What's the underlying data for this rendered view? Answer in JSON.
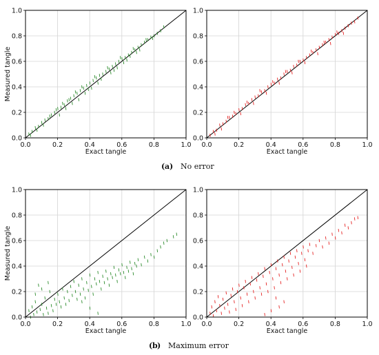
{
  "captions": {
    "a_label": "a",
    "a_text": "No error",
    "b_label": "b",
    "b_text": "Maximum error"
  },
  "colors": {
    "green": "#2a8a2a",
    "red": "#e52222",
    "diagonal": "#000000",
    "grid": "#d4d4d4"
  },
  "chart_data": [
    {
      "type": "scatter",
      "panel": "a-left",
      "xlabel": "Exact tangle",
      "ylabel": "Measured tangle",
      "xlim": [
        0,
        1
      ],
      "ylim": [
        0,
        1
      ],
      "xticks": [
        "0.0",
        "0.2",
        "0.4",
        "0.6",
        "0.8",
        "1.0"
      ],
      "yticks": [
        "0.0",
        "0.2",
        "0.4",
        "0.6",
        "0.8",
        "1.0"
      ],
      "grid": true,
      "color": "#2a8a2a",
      "reference_line": "y = x",
      "points": [
        [
          0.02,
          0.03
        ],
        [
          0.04,
          0.05
        ],
        [
          0.06,
          0.08
        ],
        [
          0.08,
          0.09
        ],
        [
          0.1,
          0.12
        ],
        [
          0.12,
          0.14
        ],
        [
          0.14,
          0.15
        ],
        [
          0.16,
          0.18
        ],
        [
          0.18,
          0.2
        ],
        [
          0.2,
          0.23
        ],
        [
          0.22,
          0.24
        ],
        [
          0.24,
          0.26
        ],
        [
          0.26,
          0.29
        ],
        [
          0.28,
          0.31
        ],
        [
          0.3,
          0.33
        ],
        [
          0.32,
          0.35
        ],
        [
          0.34,
          0.37
        ],
        [
          0.36,
          0.39
        ],
        [
          0.38,
          0.41
        ],
        [
          0.4,
          0.43
        ],
        [
          0.42,
          0.45
        ],
        [
          0.44,
          0.47
        ],
        [
          0.46,
          0.49
        ],
        [
          0.48,
          0.5
        ],
        [
          0.5,
          0.52
        ],
        [
          0.52,
          0.54
        ],
        [
          0.54,
          0.56
        ],
        [
          0.56,
          0.58
        ],
        [
          0.58,
          0.6
        ],
        [
          0.6,
          0.62
        ],
        [
          0.62,
          0.63
        ],
        [
          0.64,
          0.65
        ],
        [
          0.66,
          0.67
        ],
        [
          0.68,
          0.69
        ],
        [
          0.7,
          0.71
        ],
        [
          0.72,
          0.73
        ],
        [
          0.74,
          0.75
        ],
        [
          0.76,
          0.77
        ],
        [
          0.78,
          0.79
        ],
        [
          0.8,
          0.8
        ],
        [
          0.82,
          0.82
        ],
        [
          0.84,
          0.84
        ],
        [
          0.86,
          0.87
        ],
        [
          0.03,
          0.02
        ],
        [
          0.07,
          0.06
        ],
        [
          0.11,
          0.1
        ],
        [
          0.15,
          0.17
        ],
        [
          0.19,
          0.22
        ],
        [
          0.23,
          0.27
        ],
        [
          0.27,
          0.3
        ],
        [
          0.31,
          0.36
        ],
        [
          0.35,
          0.4
        ],
        [
          0.39,
          0.38
        ],
        [
          0.43,
          0.48
        ],
        [
          0.47,
          0.46
        ],
        [
          0.51,
          0.55
        ],
        [
          0.55,
          0.53
        ],
        [
          0.59,
          0.63
        ],
        [
          0.63,
          0.61
        ],
        [
          0.67,
          0.7
        ],
        [
          0.71,
          0.69
        ],
        [
          0.75,
          0.77
        ],
        [
          0.79,
          0.78
        ],
        [
          0.33,
          0.3
        ],
        [
          0.37,
          0.35
        ],
        [
          0.41,
          0.39
        ],
        [
          0.45,
          0.43
        ],
        [
          0.25,
          0.23
        ],
        [
          0.29,
          0.27
        ],
        [
          0.21,
          0.18
        ],
        [
          0.53,
          0.51
        ],
        [
          0.57,
          0.55
        ],
        [
          0.61,
          0.59
        ],
        [
          0.65,
          0.64
        ],
        [
          0.69,
          0.67
        ]
      ]
    },
    {
      "type": "scatter",
      "panel": "a-right",
      "xlabel": "Exact tangle",
      "ylabel": "",
      "xlim": [
        0,
        1
      ],
      "ylim": [
        0,
        1
      ],
      "xticks": [
        "0.0",
        "0.2",
        "0.4",
        "0.6",
        "0.8",
        "1.0"
      ],
      "yticks": [
        "0.0",
        "0.2",
        "0.4",
        "0.6",
        "0.8",
        "1.0"
      ],
      "grid": true,
      "color": "#e52222",
      "reference_line": "y = x",
      "points": [
        [
          0.02,
          0.02
        ],
        [
          0.04,
          0.05
        ],
        [
          0.06,
          0.06
        ],
        [
          0.08,
          0.1
        ],
        [
          0.1,
          0.11
        ],
        [
          0.12,
          0.13
        ],
        [
          0.14,
          0.16
        ],
        [
          0.16,
          0.17
        ],
        [
          0.18,
          0.19
        ],
        [
          0.2,
          0.22
        ],
        [
          0.22,
          0.23
        ],
        [
          0.24,
          0.26
        ],
        [
          0.26,
          0.27
        ],
        [
          0.28,
          0.3
        ],
        [
          0.3,
          0.32
        ],
        [
          0.32,
          0.33
        ],
        [
          0.34,
          0.36
        ],
        [
          0.36,
          0.37
        ],
        [
          0.38,
          0.4
        ],
        [
          0.4,
          0.42
        ],
        [
          0.42,
          0.43
        ],
        [
          0.44,
          0.46
        ],
        [
          0.46,
          0.47
        ],
        [
          0.48,
          0.5
        ],
        [
          0.5,
          0.52
        ],
        [
          0.52,
          0.53
        ],
        [
          0.54,
          0.56
        ],
        [
          0.56,
          0.57
        ],
        [
          0.58,
          0.6
        ],
        [
          0.6,
          0.61
        ],
        [
          0.62,
          0.63
        ],
        [
          0.64,
          0.65
        ],
        [
          0.66,
          0.67
        ],
        [
          0.68,
          0.69
        ],
        [
          0.7,
          0.71
        ],
        [
          0.72,
          0.73
        ],
        [
          0.74,
          0.75
        ],
        [
          0.76,
          0.77
        ],
        [
          0.78,
          0.79
        ],
        [
          0.8,
          0.81
        ],
        [
          0.82,
          0.82
        ],
        [
          0.84,
          0.84
        ],
        [
          0.86,
          0.86
        ],
        [
          0.88,
          0.88
        ],
        [
          0.9,
          0.9
        ],
        [
          0.92,
          0.91
        ],
        [
          0.94,
          0.94
        ],
        [
          0.05,
          0.03
        ],
        [
          0.09,
          0.07
        ],
        [
          0.13,
          0.16
        ],
        [
          0.17,
          0.2
        ],
        [
          0.21,
          0.19
        ],
        [
          0.25,
          0.28
        ],
        [
          0.29,
          0.27
        ],
        [
          0.33,
          0.37
        ],
        [
          0.37,
          0.35
        ],
        [
          0.41,
          0.44
        ],
        [
          0.45,
          0.43
        ],
        [
          0.49,
          0.52
        ],
        [
          0.53,
          0.51
        ],
        [
          0.57,
          0.6
        ],
        [
          0.61,
          0.59
        ],
        [
          0.65,
          0.68
        ],
        [
          0.69,
          0.66
        ],
        [
          0.73,
          0.75
        ],
        [
          0.77,
          0.74
        ],
        [
          0.81,
          0.83
        ],
        [
          0.85,
          0.82
        ]
      ]
    },
    {
      "type": "scatter",
      "panel": "b-left",
      "xlabel": "Exact tangle",
      "ylabel": "Measured tangle",
      "xlim": [
        0,
        1
      ],
      "ylim": [
        0,
        1
      ],
      "xticks": [
        "0.0",
        "0.2",
        "0.4",
        "0.6",
        "0.8",
        "1.0"
      ],
      "yticks": [
        "0.0",
        "0.2",
        "0.4",
        "0.6",
        "0.8",
        "1.0"
      ],
      "grid": true,
      "color": "#2a8a2a",
      "reference_line": "y = x",
      "points": [
        [
          0.02,
          0.05
        ],
        [
          0.03,
          0.0
        ],
        [
          0.04,
          0.08
        ],
        [
          0.05,
          0.02
        ],
        [
          0.06,
          0.12
        ],
        [
          0.07,
          0.04
        ],
        [
          0.08,
          0.25
        ],
        [
          0.09,
          0.06
        ],
        [
          0.1,
          0.1
        ],
        [
          0.11,
          0.02
        ],
        [
          0.12,
          0.15
        ],
        [
          0.13,
          0.07
        ],
        [
          0.14,
          0.03
        ],
        [
          0.15,
          0.2
        ],
        [
          0.16,
          0.09
        ],
        [
          0.17,
          0.05
        ],
        [
          0.18,
          0.14
        ],
        [
          0.19,
          0.1
        ],
        [
          0.2,
          0.18
        ],
        [
          0.21,
          0.12
        ],
        [
          0.22,
          0.08
        ],
        [
          0.23,
          0.22
        ],
        [
          0.24,
          0.15
        ],
        [
          0.25,
          0.1
        ],
        [
          0.26,
          0.2
        ],
        [
          0.27,
          0.13
        ],
        [
          0.28,
          0.24
        ],
        [
          0.29,
          0.17
        ],
        [
          0.3,
          0.28
        ],
        [
          0.31,
          0.2
        ],
        [
          0.32,
          0.14
        ],
        [
          0.33,
          0.25
        ],
        [
          0.34,
          0.18
        ],
        [
          0.35,
          0.3
        ],
        [
          0.36,
          0.22
        ],
        [
          0.37,
          0.15
        ],
        [
          0.38,
          0.27
        ],
        [
          0.39,
          0.21
        ],
        [
          0.4,
          0.33
        ],
        [
          0.41,
          0.24
        ],
        [
          0.42,
          0.18
        ],
        [
          0.43,
          0.3
        ],
        [
          0.44,
          0.26
        ],
        [
          0.45,
          0.35
        ],
        [
          0.46,
          0.28
        ],
        [
          0.47,
          0.22
        ],
        [
          0.48,
          0.32
        ],
        [
          0.49,
          0.27
        ],
        [
          0.5,
          0.36
        ],
        [
          0.51,
          0.3
        ],
        [
          0.52,
          0.25
        ],
        [
          0.53,
          0.34
        ],
        [
          0.54,
          0.31
        ],
        [
          0.55,
          0.39
        ],
        [
          0.56,
          0.33
        ],
        [
          0.57,
          0.28
        ],
        [
          0.58,
          0.37
        ],
        [
          0.59,
          0.34
        ],
        [
          0.6,
          0.41
        ],
        [
          0.61,
          0.35
        ],
        [
          0.62,
          0.31
        ],
        [
          0.63,
          0.39
        ],
        [
          0.64,
          0.36
        ],
        [
          0.65,
          0.43
        ],
        [
          0.66,
          0.38
        ],
        [
          0.67,
          0.34
        ],
        [
          0.68,
          0.42
        ],
        [
          0.69,
          0.4
        ],
        [
          0.7,
          0.45
        ],
        [
          0.72,
          0.41
        ],
        [
          0.74,
          0.47
        ],
        [
          0.76,
          0.44
        ],
        [
          0.78,
          0.49
        ],
        [
          0.8,
          0.47
        ],
        [
          0.82,
          0.52
        ],
        [
          0.84,
          0.55
        ],
        [
          0.86,
          0.58
        ],
        [
          0.88,
          0.6
        ],
        [
          0.92,
          0.63
        ],
        [
          0.94,
          0.65
        ],
        [
          0.06,
          0.18
        ],
        [
          0.1,
          0.22
        ],
        [
          0.14,
          0.27
        ],
        [
          0.45,
          0.03
        ],
        [
          0.4,
          0.07
        ],
        [
          0.35,
          0.12
        ]
      ]
    },
    {
      "type": "scatter",
      "panel": "b-right",
      "xlabel": "Exact tangle",
      "ylabel": "",
      "xlim": [
        0,
        1
      ],
      "ylim": [
        0,
        1
      ],
      "xticks": [
        "0.0",
        "0.2",
        "0.4",
        "0.6",
        "0.8",
        "1.0"
      ],
      "yticks": [
        "0.0",
        "0.2",
        "0.4",
        "0.6",
        "0.8",
        "1.0"
      ],
      "grid": true,
      "color": "#e52222",
      "reference_line": "y = x",
      "points": [
        [
          0.02,
          0.03
        ],
        [
          0.03,
          0.08
        ],
        [
          0.04,
          0.01
        ],
        [
          0.05,
          0.12
        ],
        [
          0.06,
          0.05
        ],
        [
          0.07,
          0.16
        ],
        [
          0.08,
          0.09
        ],
        [
          0.09,
          0.03
        ],
        [
          0.1,
          0.14
        ],
        [
          0.11,
          0.07
        ],
        [
          0.12,
          0.19
        ],
        [
          0.13,
          0.1
        ],
        [
          0.14,
          0.04
        ],
        [
          0.15,
          0.17
        ],
        [
          0.16,
          0.22
        ],
        [
          0.17,
          0.12
        ],
        [
          0.18,
          0.06
        ],
        [
          0.19,
          0.2
        ],
        [
          0.2,
          0.25
        ],
        [
          0.21,
          0.15
        ],
        [
          0.22,
          0.09
        ],
        [
          0.23,
          0.23
        ],
        [
          0.24,
          0.28
        ],
        [
          0.25,
          0.18
        ],
        [
          0.26,
          0.12
        ],
        [
          0.27,
          0.26
        ],
        [
          0.28,
          0.31
        ],
        [
          0.29,
          0.2
        ],
        [
          0.3,
          0.15
        ],
        [
          0.31,
          0.29
        ],
        [
          0.32,
          0.34
        ],
        [
          0.33,
          0.23
        ],
        [
          0.34,
          0.18
        ],
        [
          0.35,
          0.32
        ],
        [
          0.36,
          0.38
        ],
        [
          0.37,
          0.26
        ],
        [
          0.38,
          0.2
        ],
        [
          0.39,
          0.35
        ],
        [
          0.4,
          0.41
        ],
        [
          0.41,
          0.3
        ],
        [
          0.42,
          0.23
        ],
        [
          0.43,
          0.38
        ],
        [
          0.44,
          0.44
        ],
        [
          0.45,
          0.33
        ],
        [
          0.46,
          0.27
        ],
        [
          0.47,
          0.41
        ],
        [
          0.48,
          0.47
        ],
        [
          0.49,
          0.36
        ],
        [
          0.5,
          0.3
        ],
        [
          0.51,
          0.44
        ],
        [
          0.52,
          0.5
        ],
        [
          0.53,
          0.39
        ],
        [
          0.54,
          0.33
        ],
        [
          0.55,
          0.47
        ],
        [
          0.56,
          0.52
        ],
        [
          0.57,
          0.42
        ],
        [
          0.58,
          0.36
        ],
        [
          0.59,
          0.5
        ],
        [
          0.6,
          0.55
        ],
        [
          0.61,
          0.45
        ],
        [
          0.62,
          0.4
        ],
        [
          0.63,
          0.52
        ],
        [
          0.64,
          0.57
        ],
        [
          0.66,
          0.5
        ],
        [
          0.68,
          0.56
        ],
        [
          0.7,
          0.6
        ],
        [
          0.72,
          0.55
        ],
        [
          0.74,
          0.62
        ],
        [
          0.76,
          0.58
        ],
        [
          0.78,
          0.65
        ],
        [
          0.8,
          0.62
        ],
        [
          0.82,
          0.68
        ],
        [
          0.84,
          0.66
        ],
        [
          0.86,
          0.72
        ],
        [
          0.88,
          0.7
        ],
        [
          0.9,
          0.74
        ],
        [
          0.92,
          0.77
        ],
        [
          0.94,
          0.78
        ],
        [
          0.4,
          0.05
        ],
        [
          0.45,
          0.08
        ],
        [
          0.48,
          0.12
        ],
        [
          0.36,
          0.02
        ],
        [
          0.43,
          0.15
        ]
      ]
    }
  ]
}
